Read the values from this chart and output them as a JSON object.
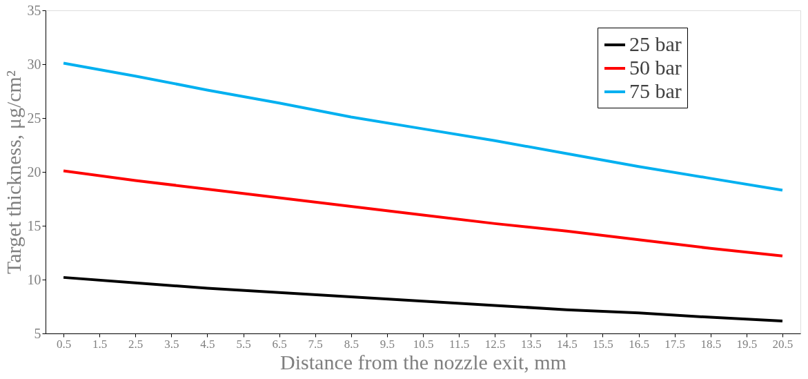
{
  "chart_data": {
    "type": "line",
    "xlabel": "Distance from the nozzle exit,  mm",
    "ylabel": "Target thickness, μg/cm²",
    "x": [
      0.5,
      2.5,
      4.5,
      6.5,
      8.5,
      10.5,
      12.5,
      14.5,
      16.5,
      18.5,
      20.5
    ],
    "xlim": [
      0,
      21
    ],
    "xticks": [
      0.5,
      1.5,
      2.5,
      3.5,
      4.5,
      5.5,
      6.5,
      7.5,
      8.5,
      9.5,
      10.5,
      11.5,
      12.5,
      13.5,
      14.5,
      15.5,
      16.5,
      17.5,
      18.5,
      19.5,
      20.5
    ],
    "ylim": [
      5,
      35
    ],
    "yticks": [
      5,
      10,
      15,
      20,
      25,
      30,
      35
    ],
    "grid": false,
    "legend": "top right",
    "marker": "none",
    "line_style": "solid",
    "series": [
      {
        "name": "25 bar",
        "color": "#000000",
        "values": [
          10.2,
          9.7,
          9.2,
          8.8,
          8.4,
          8.0,
          7.6,
          7.2,
          6.9,
          6.5,
          6.15
        ]
      },
      {
        "name": "50 bar",
        "color": "#ff0000",
        "values": [
          20.1,
          19.2,
          18.4,
          17.6,
          16.8,
          16.0,
          15.2,
          14.5,
          13.7,
          12.9,
          12.2
        ]
      },
      {
        "name": "75 bar",
        "color": "#00b0f0",
        "values": [
          30.1,
          28.9,
          27.6,
          26.4,
          25.1,
          24.0,
          22.9,
          21.7,
          20.5,
          19.4,
          18.3
        ]
      }
    ]
  }
}
